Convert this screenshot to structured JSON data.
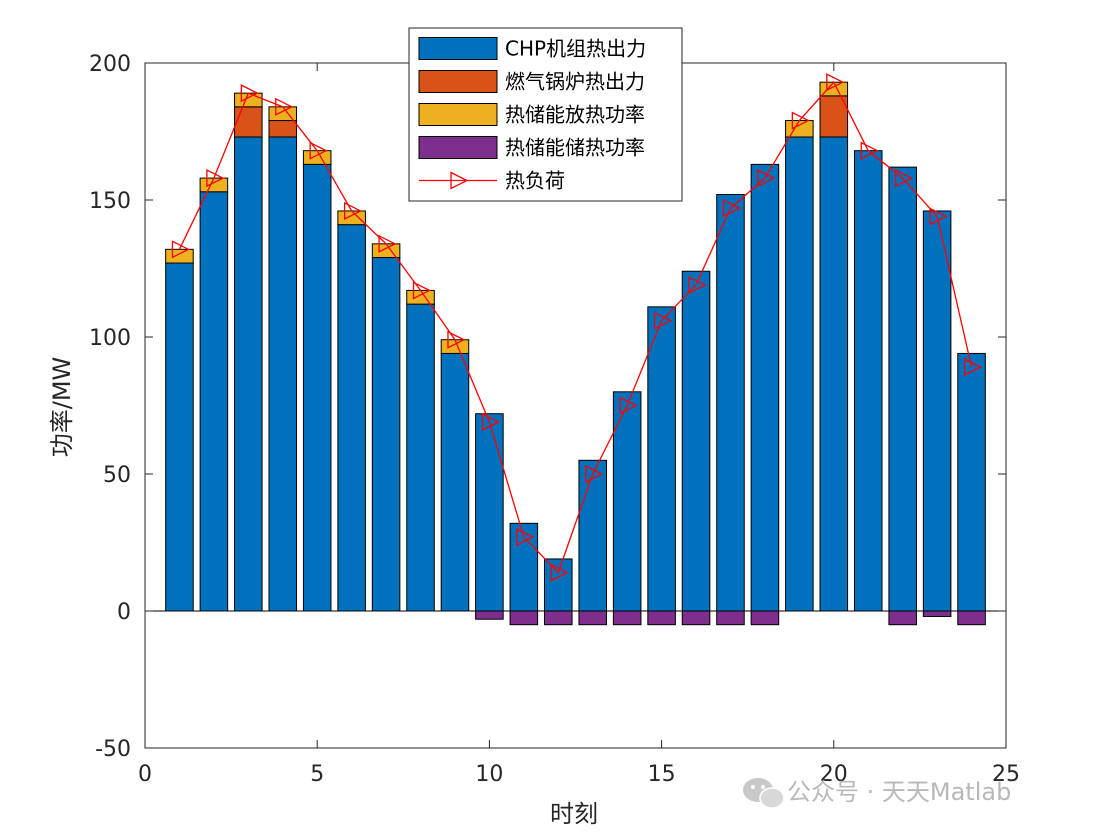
{
  "chart_data": {
    "type": "bar",
    "stacked": true,
    "x": [
      1,
      2,
      3,
      4,
      5,
      6,
      7,
      8,
      9,
      10,
      11,
      12,
      13,
      14,
      15,
      16,
      17,
      18,
      19,
      20,
      21,
      22,
      23,
      24
    ],
    "series": [
      {
        "name": "CHP机组热出力",
        "color": "#0072BD",
        "values": [
          127,
          153,
          173,
          173,
          163,
          141,
          129,
          112,
          94,
          72,
          32,
          19,
          55,
          80,
          111,
          124,
          152,
          163,
          173,
          173,
          168,
          162,
          146,
          94
        ]
      },
      {
        "name": "燃气锅炉热出力",
        "color": "#D95319",
        "values": [
          0,
          0,
          11,
          6,
          0,
          0,
          0,
          0,
          0,
          0,
          0,
          0,
          0,
          0,
          0,
          0,
          0,
          0,
          0,
          15,
          0,
          0,
          0,
          0
        ]
      },
      {
        "name": "热储能放热功率",
        "color": "#EDB120",
        "values": [
          5,
          5,
          5,
          5,
          5,
          5,
          5,
          5,
          5,
          0,
          0,
          0,
          0,
          0,
          0,
          0,
          0,
          0,
          6,
          5,
          0,
          0,
          0,
          0
        ]
      },
      {
        "name": "热储能储热功率",
        "color": "#7E2F8E",
        "values": [
          0,
          0,
          0,
          0,
          0,
          0,
          0,
          0,
          0,
          -3,
          -5,
          -5,
          -5,
          -5,
          -5,
          -5,
          -5,
          -5,
          0,
          0,
          0,
          -5,
          -2,
          -5
        ]
      },
      {
        "name": "热负荷",
        "color": "#FF0000",
        "type": "line",
        "marker": "triangle-right",
        "values": [
          132,
          158,
          189,
          184,
          168,
          146,
          134,
          117,
          99,
          69,
          27,
          14,
          50,
          75,
          106,
          119,
          147,
          158,
          179,
          193,
          168,
          158,
          144,
          89
        ]
      }
    ],
    "xlabel": "时刻",
    "ylabel": "功率/MW",
    "xlim": [
      0,
      25
    ],
    "ylim": [
      -50,
      200
    ],
    "xticks": [
      "0",
      "5",
      "10",
      "15",
      "20",
      "25"
    ],
    "yticks": [
      "-50",
      "0",
      "50",
      "100",
      "150",
      "200"
    ],
    "grid": false,
    "legend_position": "top-center"
  },
  "watermark": {
    "text": "公众号 · 天天Matlab",
    "icon": "wechat-icon"
  }
}
